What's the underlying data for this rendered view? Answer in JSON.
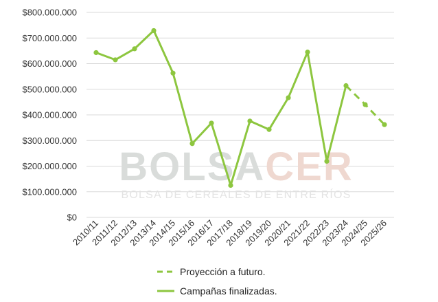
{
  "watermark": {
    "brand_left": "BOLSA",
    "brand_right": "CER",
    "subtitle": "BOLSA DE CEREALES DE ENTRE RÍOS",
    "color_left": "#d9dcda",
    "color_right": "#efd8d0"
  },
  "legend": {
    "projection_label": "Proyección a futuro.",
    "finished_label": "Campañas finalizadas."
  },
  "colors": {
    "line": "#8dc63f",
    "grid": "#d9d9d9"
  },
  "chart_data": {
    "type": "line",
    "title": "",
    "xlabel": "",
    "ylabel": "",
    "ylim": [
      0,
      800000000
    ],
    "y_ticks": [
      0,
      100000000,
      200000000,
      300000000,
      400000000,
      500000000,
      600000000,
      700000000,
      800000000
    ],
    "y_tick_labels": [
      "$0",
      "$100.000.000",
      "$200.000.000",
      "$300.000.000",
      "$400.000.000",
      "$500.000.000",
      "$600.000.000",
      "$700.000.000",
      "$800.000.000"
    ],
    "grid": true,
    "legend_position": "bottom",
    "categories": [
      "2010/11",
      "2011/12",
      "2012/13",
      "2013/14",
      "2014/15",
      "2015/16",
      "2016/17",
      "2017/18",
      "2018/19",
      "2019/20",
      "2020/21",
      "2021/22",
      "2022/23",
      "2023/24",
      "2024/25",
      "2025/26"
    ],
    "series": [
      {
        "name": "Campañas finalizadas.",
        "style": "solid",
        "values": [
          643000000,
          615000000,
          658000000,
          729000000,
          563000000,
          288000000,
          368000000,
          125000000,
          376000000,
          343000000,
          467000000,
          645000000,
          219000000,
          514000000,
          null,
          null
        ]
      },
      {
        "name": "Proyección a futuro.",
        "style": "dashed",
        "values": [
          null,
          null,
          null,
          null,
          null,
          null,
          null,
          null,
          null,
          null,
          null,
          null,
          null,
          514000000,
          440000000,
          362000000
        ]
      }
    ]
  }
}
